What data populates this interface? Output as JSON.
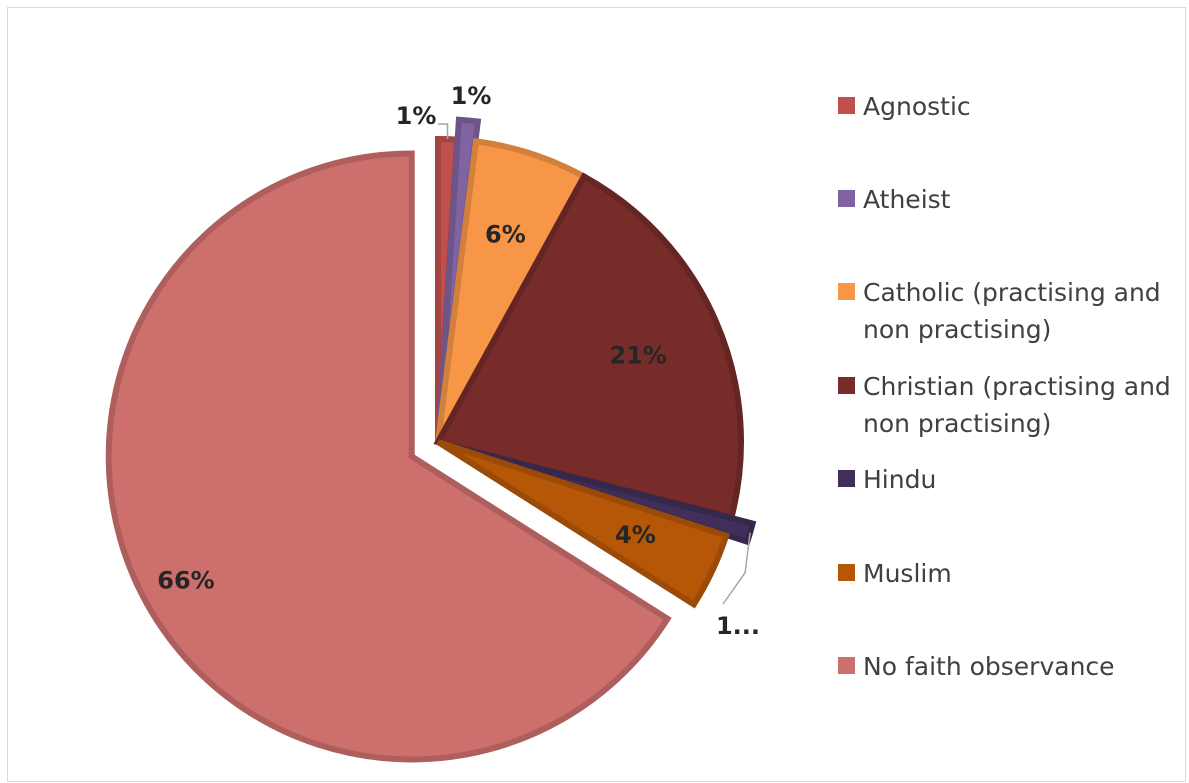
{
  "chart_data": {
    "type": "pie",
    "title": "",
    "categories": [
      "Agnostic",
      "Atheist",
      "Catholic (practising and non practising)",
      "Christian (practising and non practising)",
      "Hindu",
      "Muslim",
      "No faith observance"
    ],
    "values": [
      1,
      1,
      6,
      21,
      1,
      4,
      66
    ],
    "data_labels": [
      "1%",
      "1%",
      "6%",
      "21%",
      "1...",
      "4%",
      "66%"
    ],
    "colors": [
      "#c0504d",
      "#8064a2",
      "#f79646",
      "#772c2a",
      "#3f2f5a",
      "#b65708",
      "#cd6f6c"
    ],
    "exploded": [
      false,
      true,
      false,
      false,
      true,
      false,
      true
    ],
    "legend_position": "right"
  }
}
